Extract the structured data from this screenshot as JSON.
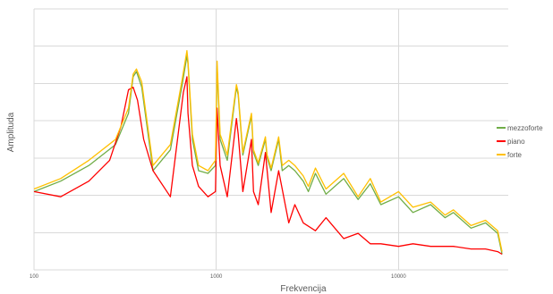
{
  "chart_data": {
    "type": "line",
    "title": "",
    "xlabel": "Frekvencija",
    "ylabel": "Amplituda",
    "x_scale": "log",
    "xlim": [
      100,
      40000
    ],
    "ylim": [
      0,
      100
    ],
    "x_ticks": [
      100,
      1000,
      10000
    ],
    "x_tick_labels": [
      "100",
      "1000",
      "10000"
    ],
    "y_gridlines": 7,
    "grid": true,
    "legend_position": "right",
    "series": [
      {
        "name": "mezzoforte",
        "color": "#70ad47",
        "x": [
          100,
          140,
          200,
          280,
          330,
          350,
          365,
          390,
          450,
          560,
          650,
          690,
          700,
          740,
          800,
          900,
          990,
          1010,
          1050,
          1150,
          1290,
          1320,
          1400,
          1560,
          1600,
          1700,
          1860,
          1900,
          2000,
          2200,
          2300,
          2500,
          2700,
          3000,
          3200,
          3500,
          4000,
          5000,
          6000,
          7000,
          8000,
          10000,
          12000,
          15000,
          18000,
          20000,
          25000,
          30000,
          35000,
          37000
        ],
        "y": [
          30,
          34,
          40,
          48,
          60,
          74,
          76,
          70,
          38,
          46,
          71,
          82,
          79,
          50,
          38,
          37,
          40,
          78,
          50,
          42,
          70,
          67,
          44,
          59,
          45,
          40,
          50,
          43,
          38,
          50,
          38,
          40,
          38,
          34,
          30,
          37,
          29,
          35,
          27,
          33,
          25,
          28,
          22,
          25,
          20,
          22,
          16,
          18,
          14,
          6
        ]
      },
      {
        "name": "piano",
        "color": "#ff0000",
        "x": [
          100,
          140,
          200,
          260,
          300,
          330,
          350,
          370,
          400,
          450,
          560,
          660,
          690,
          700,
          740,
          800,
          900,
          990,
          1010,
          1050,
          1150,
          1290,
          1320,
          1400,
          1560,
          1600,
          1700,
          1860,
          2000,
          2200,
          2500,
          2700,
          3000,
          3500,
          4000,
          5000,
          6000,
          7000,
          8000,
          10000,
          12000,
          15000,
          20000,
          25000,
          30000,
          35000,
          37000
        ],
        "y": [
          30,
          28,
          34,
          42,
          55,
          69,
          70,
          65,
          50,
          38,
          28,
          68,
          74,
          60,
          40,
          32,
          28,
          30,
          62,
          40,
          28,
          58,
          52,
          30,
          50,
          30,
          25,
          45,
          22,
          38,
          18,
          25,
          18,
          15,
          20,
          12,
          14,
          10,
          10,
          9,
          10,
          9,
          9,
          8,
          8,
          7,
          6
        ]
      },
      {
        "name": "forte",
        "color": "#ffc000",
        "x": [
          100,
          140,
          200,
          280,
          330,
          350,
          365,
          390,
          450,
          560,
          650,
          690,
          700,
          740,
          800,
          900,
          990,
          1010,
          1050,
          1150,
          1290,
          1320,
          1400,
          1560,
          1600,
          1700,
          1860,
          1900,
          2000,
          2200,
          2300,
          2500,
          2700,
          3000,
          3200,
          3500,
          4000,
          5000,
          6000,
          7000,
          8000,
          10000,
          12000,
          15000,
          18000,
          20000,
          25000,
          30000,
          35000,
          37000
        ],
        "y": [
          31,
          35,
          42,
          50,
          62,
          75,
          77,
          72,
          40,
          48,
          73,
          84,
          80,
          52,
          40,
          38,
          42,
          80,
          52,
          44,
          71,
          68,
          45,
          60,
          46,
          41,
          51,
          44,
          39,
          51,
          40,
          42,
          40,
          36,
          32,
          39,
          31,
          37,
          28,
          35,
          26,
          30,
          24,
          26,
          21,
          23,
          17,
          19,
          15,
          7
        ]
      }
    ]
  }
}
